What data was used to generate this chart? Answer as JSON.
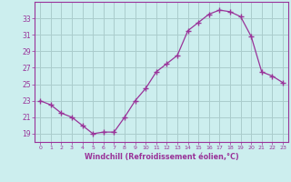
{
  "x": [
    0,
    1,
    2,
    3,
    4,
    5,
    6,
    7,
    8,
    9,
    10,
    11,
    12,
    13,
    14,
    15,
    16,
    17,
    18,
    19,
    20,
    21,
    22,
    23
  ],
  "y": [
    23,
    22.5,
    21.5,
    21,
    20,
    19,
    19.2,
    19.2,
    21,
    23,
    24.5,
    26.5,
    27.5,
    28.5,
    31.5,
    32.5,
    33.5,
    34,
    33.8,
    33.2,
    30.8,
    26.5,
    26,
    25.2
  ],
  "line_color": "#993399",
  "marker": "D",
  "marker_size": 2.2,
  "bg_color": "#cceeee",
  "plot_bg_color": "#cceeee",
  "grid_color": "#aacccc",
  "tick_color": "#993399",
  "label_color": "#993399",
  "xlabel": "Windchill (Refroidissement éolien,°C)",
  "ylim": [
    18,
    35
  ],
  "yticks": [
    19,
    21,
    23,
    25,
    27,
    29,
    31,
    33
  ],
  "xticks": [
    0,
    1,
    2,
    3,
    4,
    5,
    6,
    7,
    8,
    9,
    10,
    11,
    12,
    13,
    14,
    15,
    16,
    17,
    18,
    19,
    20,
    21,
    22,
    23
  ],
  "xlim": [
    -0.5,
    23.5
  ]
}
